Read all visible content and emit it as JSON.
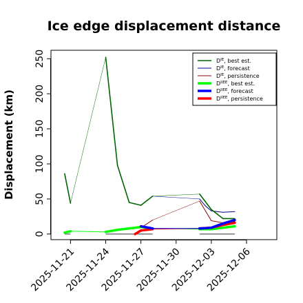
{
  "chart_data": {
    "type": "line",
    "title": "Ice edge displacement distance",
    "xlabel": "",
    "ylabel": "Displacement (km)",
    "xlim": [
      "2025-11-19T08:00",
      "2025-12-08T14:00"
    ],
    "ylim": [
      -8,
      262
    ],
    "yticks": [
      0,
      50,
      100,
      150,
      200,
      250
    ],
    "xticks": [
      "2025-11-21",
      "2025-11-24",
      "2025-11-27",
      "2025-11-30",
      "2025-12-03",
      "2025-12-06"
    ],
    "highlighted_xtick": "2025-11-27",
    "highlight_color": "#1a8a1a",
    "grid": false,
    "legend_position": "top-right",
    "series": [
      {
        "name": "D^IE, best est.",
        "color": "#006400",
        "x": [
          "2025-11-20T12:00",
          "2025-11-21T00:00",
          "2025-11-24T00:00",
          "2025-11-25T00:00",
          "2025-11-26T00:00",
          "2025-11-27T00:00",
          "2025-11-28T00:00",
          "2025-12-02T00:00",
          "2025-12-03T00:00",
          "2025-12-04T00:00",
          "2025-12-05T00:00"
        ],
        "values": [
          86,
          44,
          252,
          98,
          45,
          41,
          54,
          57,
          35,
          22,
          22
        ]
      },
      {
        "name": "D^IE, forecast",
        "color": "#00008b",
        "x": [
          "2025-11-27T00:00",
          "2025-11-28T00:00",
          "2025-12-02T00:00",
          "2025-12-02T12:00",
          "2025-12-03T00:00",
          "2025-12-04T00:00",
          "2025-12-05T00:00"
        ],
        "values": [
          41,
          54,
          50,
          40,
          33,
          31,
          32
        ]
      },
      {
        "name": "D^IE, persistence",
        "color": "#8b0000",
        "x": [
          "2025-11-27T00:00",
          "2025-11-28T00:00",
          "2025-12-02T00:00",
          "2025-12-03T00:00",
          "2025-12-04T00:00",
          "2025-12-05T00:00"
        ],
        "values": [
          9,
          20,
          47,
          19,
          16,
          18
        ]
      },
      {
        "name": "D^IIEE, best est.",
        "color": "#00ff00",
        "x": [
          "2025-11-20T12:00",
          "2025-11-21T00:00",
          "2025-11-24T00:00",
          "2025-11-25T00:00",
          "2025-11-26T00:00",
          "2025-11-27T00:00",
          "2025-11-28T00:00",
          "2025-12-02T00:00",
          "2025-12-03T00:00",
          "2025-12-04T00:00",
          "2025-12-05T00:00"
        ],
        "values": [
          2,
          4,
          3,
          6,
          8,
          10,
          8,
          7,
          7,
          9,
          11
        ]
      },
      {
        "name": "D^IIEE, forecast",
        "color": "#0000ff",
        "x": [
          "2025-11-27T00:00",
          "2025-11-28T00:00",
          "2025-12-02T00:00",
          "2025-12-03T00:00",
          "2025-12-04T00:00",
          "2025-12-05T00:00"
        ],
        "values": [
          11,
          8,
          8,
          9,
          15,
          20
        ]
      },
      {
        "name": "D^IIEE, persistence",
        "color": "#ff0000",
        "x": [
          "2025-11-26T12:00",
          "2025-11-27T00:00",
          "2025-11-28T00:00",
          "2025-12-02T00:00",
          "2025-12-03T00:00",
          "2025-12-04T00:00",
          "2025-12-05T00:00"
        ],
        "values": [
          0,
          5,
          7,
          8,
          9,
          13,
          16
        ]
      }
    ],
    "zero_lines": {
      "color": "#808080",
      "x_ranges": [
        [
          "2025-11-20T12:00",
          "2025-11-21T00:00"
        ],
        [
          "2025-11-24T00:00",
          "2025-11-28T00:00"
        ],
        [
          "2025-12-02T00:00",
          "2025-12-05T00:00"
        ]
      ]
    }
  }
}
